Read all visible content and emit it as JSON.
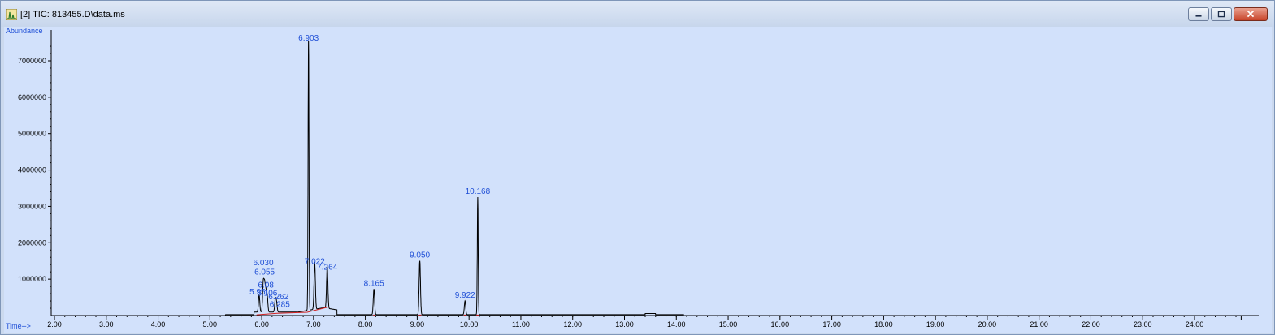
{
  "window": {
    "title": "[2] TIC: 813455.D\\data.ms",
    "icon": "chromatogram-icon",
    "controls": [
      "minimize",
      "restore",
      "close"
    ]
  },
  "chart_data": {
    "type": "line",
    "ylabel": "Abundance",
    "xlabel": "Time-->",
    "xlim": [
      1.95,
      25.0
    ],
    "ylim": [
      0,
      7600000
    ],
    "x_ticks": [
      "2.00",
      "3.00",
      "4.00",
      "5.00",
      "6.00",
      "7.00",
      "8.00",
      "9.00",
      "10.00",
      "11.00",
      "12.00",
      "13.00",
      "14.00",
      "15.00",
      "16.00",
      "17.00",
      "18.00",
      "19.00",
      "20.00",
      "21.00",
      "22.00",
      "23.00",
      "24.00"
    ],
    "y_ticks": [
      "1000000",
      "2000000",
      "3000000",
      "4000000",
      "5000000",
      "6000000",
      "7000000"
    ],
    "series": [
      {
        "color": "#000000",
        "peaks": [
          {
            "rt": 5.95,
            "height": 470000
          },
          {
            "rt": 6.03,
            "height": 780000
          },
          {
            "rt": 6.055,
            "height": 700000
          },
          {
            "rt": 6.08,
            "height": 520000
          },
          {
            "rt": 6.106,
            "height": 430000
          },
          {
            "rt": 6.262,
            "height": 330000
          },
          {
            "rt": 6.285,
            "height": 260000
          },
          {
            "rt": 6.903,
            "height": 7450000
          },
          {
            "rt": 7.022,
            "height": 1300000
          },
          {
            "rt": 7.264,
            "height": 1150000
          },
          {
            "rt": 8.165,
            "height": 700000
          },
          {
            "rt": 9.05,
            "height": 1480000
          },
          {
            "rt": 9.922,
            "height": 380000
          },
          {
            "rt": 10.168,
            "height": 3230000
          }
        ]
      }
    ],
    "peak_labels": [
      {
        "text": "5.95",
        "rt": 5.95
      },
      {
        "text": "6.030",
        "rt": 6.03
      },
      {
        "text": "6.055",
        "rt": 6.055
      },
      {
        "text": "6.08",
        "rt": 6.08
      },
      {
        "text": "6.106",
        "rt": 6.106
      },
      {
        "text": "6.262",
        "rt": 6.262
      },
      {
        "text": "6.285",
        "rt": 6.285
      },
      {
        "text": "6.903",
        "rt": 6.903
      },
      {
        "text": "7.022",
        "rt": 7.022
      },
      {
        "text": "7.264",
        "rt": 7.264
      },
      {
        "text": "8.165",
        "rt": 8.165
      },
      {
        "text": "9.050",
        "rt": 9.05
      },
      {
        "text": "9.922",
        "rt": 9.922
      },
      {
        "text": "10.168",
        "rt": 10.168
      }
    ],
    "baseline_color": "#d02020",
    "label_color": "#1f4fd6",
    "background": "#d2e1fb"
  }
}
